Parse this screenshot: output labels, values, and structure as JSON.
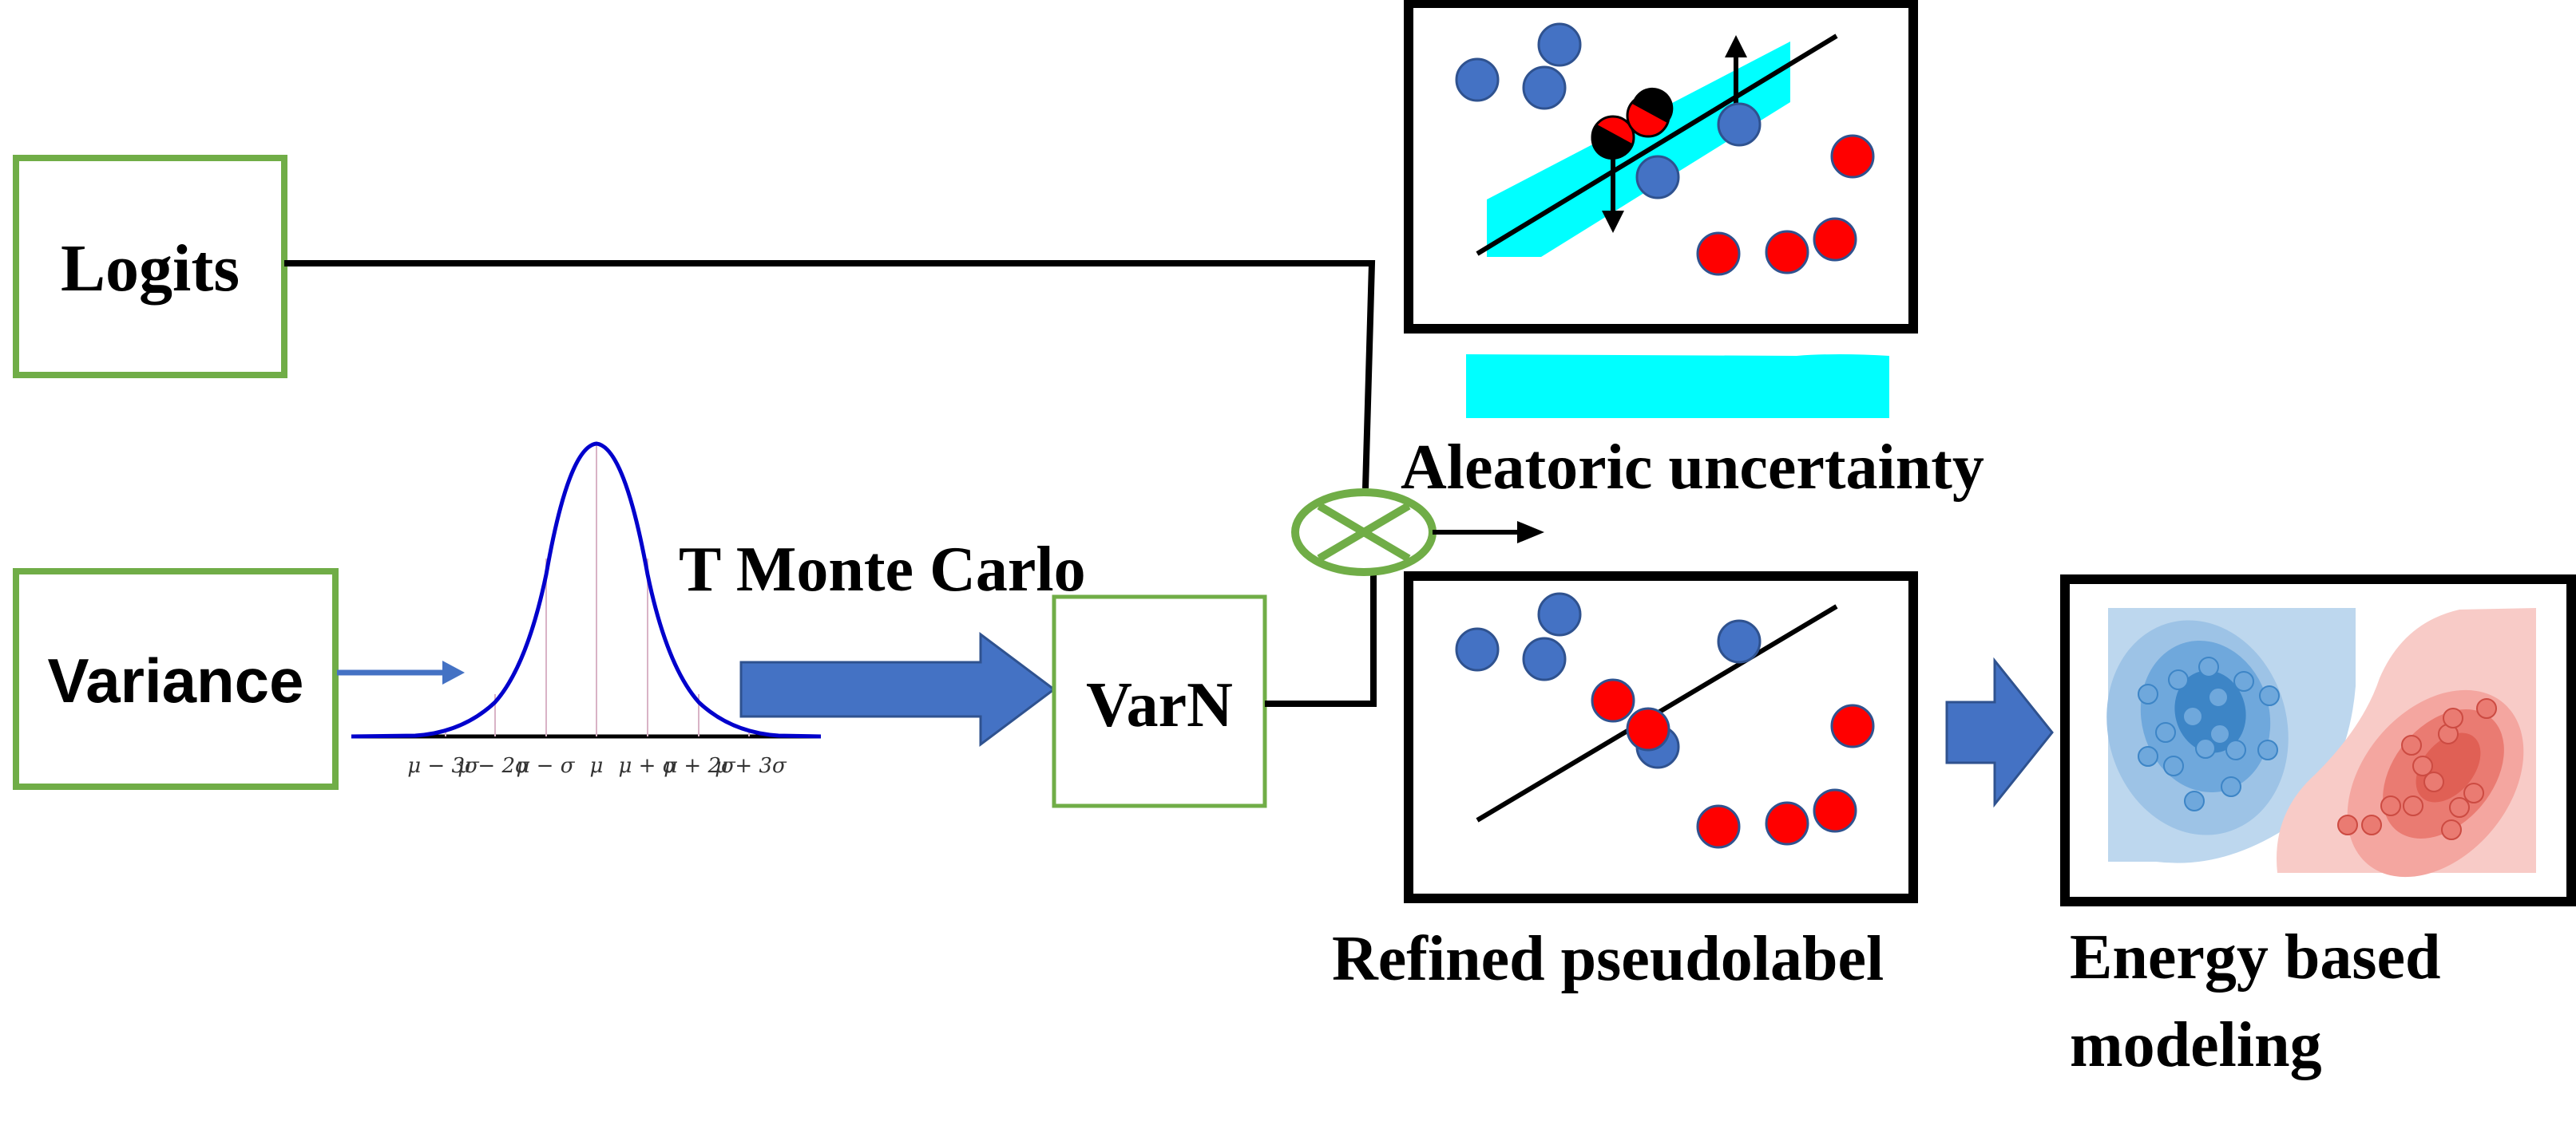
{
  "boxes": {
    "logits": "Logits",
    "variance": "Variance",
    "varn": "VarN"
  },
  "labels": {
    "monte_carlo": "T Monte Carlo",
    "aleatoric": "Aleatoric uncertainty",
    "refined": "Refined pseudolabel",
    "energy_line1": "Energy based",
    "energy_line2": "modeling"
  },
  "gaussian_ticks": [
    "μ − 3σ",
    "μ − 2σ",
    "μ − σ",
    "μ",
    "μ + σ",
    "μ + 2σ",
    "μ + 3σ"
  ],
  "colors": {
    "box_border": "#70ad47",
    "arrow_fill": "#4472c4",
    "curve": "#0000cc",
    "band": "#00ffff",
    "point_blue": "#4472c4",
    "point_red": "#ff0000",
    "blob_blue": "#9dc3e6",
    "blob_red": "#f4a6a0"
  },
  "icons": {
    "multiply": "circle-times-icon"
  }
}
